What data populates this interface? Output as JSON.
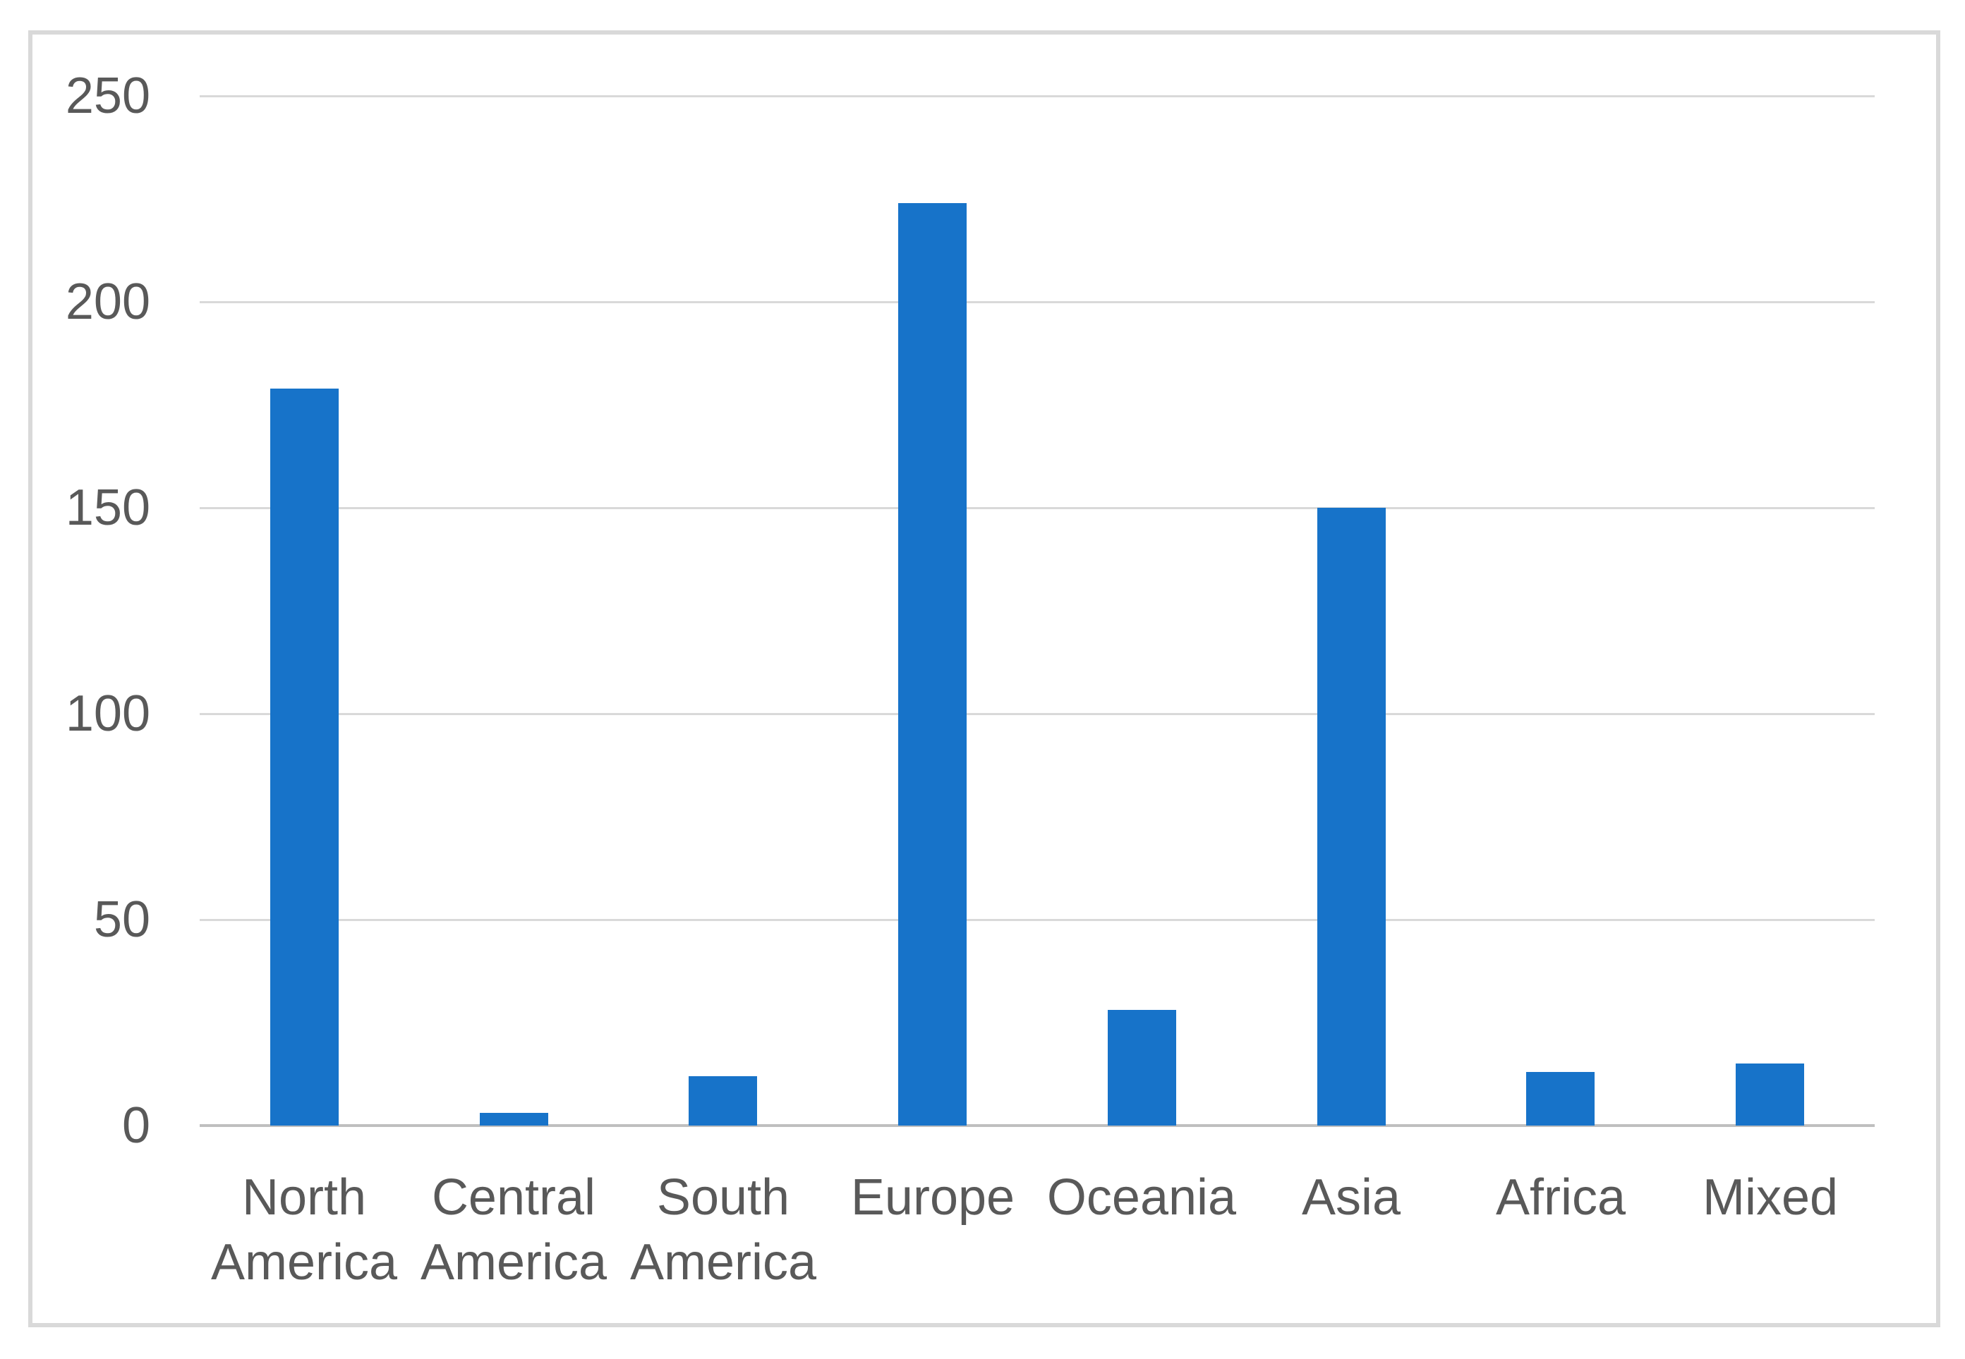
{
  "chart_data": {
    "type": "bar",
    "title": "",
    "xlabel": "",
    "ylabel": "",
    "categories": [
      "North America",
      "Central America",
      "South America",
      "Europe",
      "Oceania",
      "Asia",
      "Africa",
      "Mixed"
    ],
    "values": [
      179,
      3,
      12,
      224,
      28,
      150,
      13,
      15
    ],
    "series_name": "",
    "ylim": [
      0,
      250
    ],
    "yticks": [
      "0",
      "50",
      "100",
      "150",
      "200",
      "250"
    ],
    "ytick_values": [
      0,
      50,
      100,
      150,
      200,
      250
    ],
    "grid": true,
    "legend": false,
    "legend_position": "none",
    "colors": {
      "bar": "#1773c9",
      "gridline": "#d9d9d9",
      "axis_line": "#bfbfbf",
      "label_text": "#595959",
      "frame_border": "#d9d9d9",
      "background": "#ffffff"
    }
  }
}
